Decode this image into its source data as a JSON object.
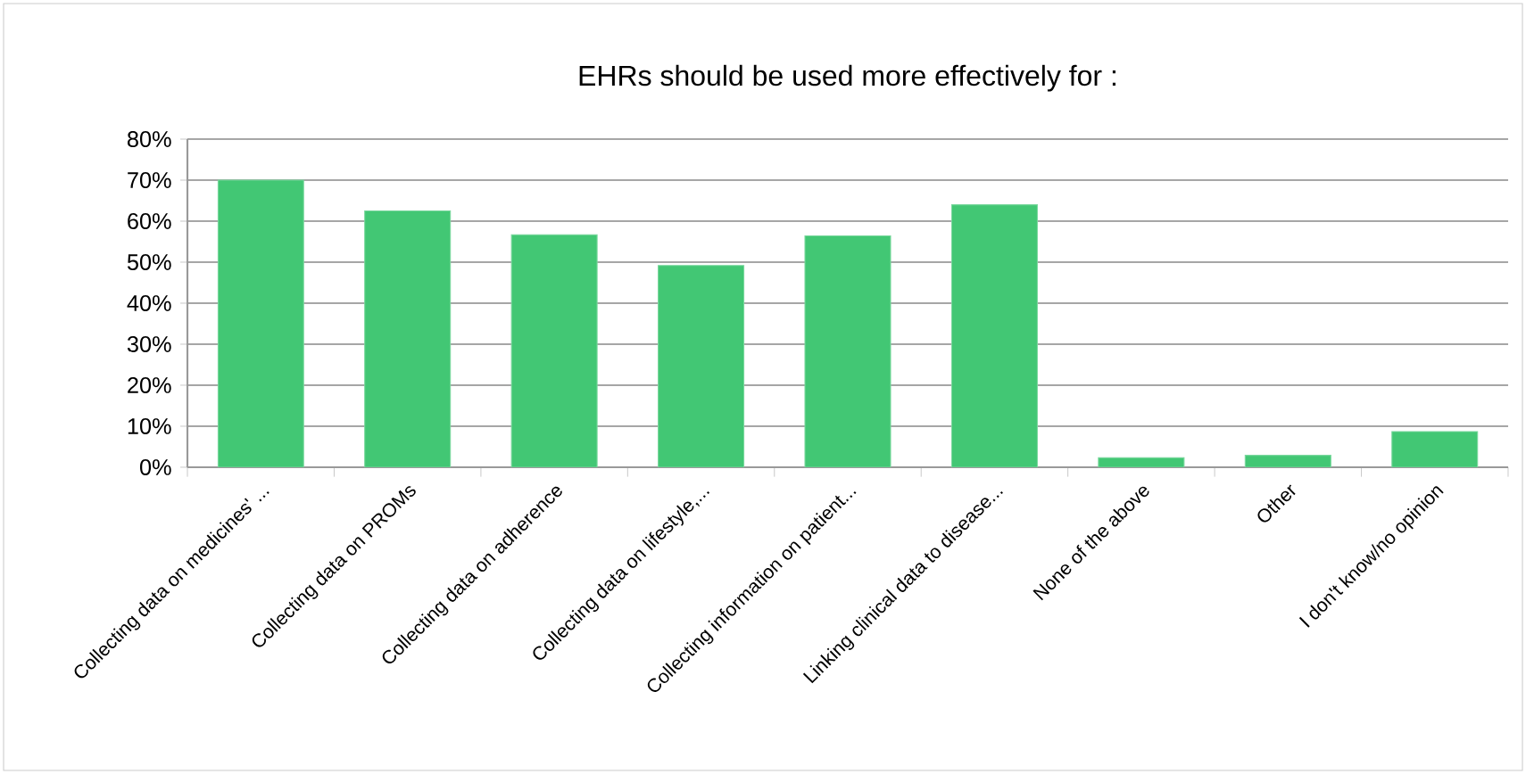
{
  "chart_data": {
    "type": "bar",
    "title": "EHRs should be used more effectively for :",
    "categories": [
      "Collecting data on medicines' ...",
      "Collecting data on PROMs",
      "Collecting data on adherence",
      "Collecting data on lifestyle,...",
      "Collecting information on patient...",
      "Linking clinical data to disease...",
      "None of the above",
      "Other",
      "I don't know/no opinion"
    ],
    "values": [
      70,
      62.5,
      56.7,
      49.2,
      56.4,
      64,
      2.3,
      2.9,
      8.7
    ],
    "color": "#42c774",
    "ylim": [
      0,
      80
    ],
    "yticks": [
      {
        "value": 0,
        "label": "0%"
      },
      {
        "value": 10,
        "label": "10%"
      },
      {
        "value": 20,
        "label": "20%"
      },
      {
        "value": 30,
        "label": "30%"
      },
      {
        "value": 40,
        "label": "40%"
      },
      {
        "value": 50,
        "label": "50%"
      },
      {
        "value": 60,
        "label": "60%"
      },
      {
        "value": 70,
        "label": "70%"
      },
      {
        "value": 80,
        "label": "80%"
      }
    ],
    "grid": "y"
  }
}
